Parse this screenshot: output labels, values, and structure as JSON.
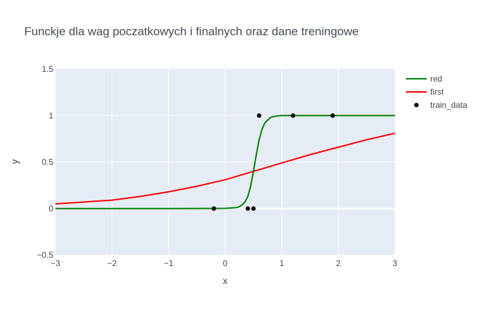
{
  "chart_data": {
    "type": "line",
    "title": "Funckje dla wag poczatkowych i finalnych oraz dane treningowe",
    "xlabel": "x",
    "ylabel": "y",
    "xlim": [
      -3,
      3
    ],
    "ylim": [
      -0.5,
      1.5
    ],
    "xticks": [
      -3,
      -2,
      -1,
      0,
      1,
      2,
      3
    ],
    "yticks": [
      -0.5,
      0,
      0.5,
      1,
      1.5
    ],
    "xtick_labels": [
      "−3",
      "−2",
      "−1",
      "0",
      "1",
      "2",
      "3"
    ],
    "ytick_labels": [
      "−0.5",
      "0",
      "0.5",
      "1",
      "1.5"
    ],
    "grid": true,
    "legend_position": "top-right",
    "background": "#e5ecf6",
    "series": [
      {
        "name": "red",
        "kind": "line",
        "color": "#008000",
        "x": [
          -3,
          -1,
          0,
          0.2,
          0.25,
          0.3,
          0.35,
          0.4,
          0.45,
          0.5,
          0.55,
          0.6,
          0.65,
          0.7,
          0.8,
          0.9,
          1.0,
          1.5,
          2,
          3
        ],
        "y": [
          0,
          0,
          0.002,
          0.01,
          0.02,
          0.04,
          0.07,
          0.13,
          0.24,
          0.4,
          0.58,
          0.74,
          0.85,
          0.92,
          0.98,
          0.995,
          1.0,
          1.0,
          1.0,
          1.0
        ]
      },
      {
        "name": "first",
        "kind": "line",
        "color": "#ff0000",
        "x": [
          -3,
          -2.5,
          -2,
          -1.5,
          -1,
          -0.5,
          0,
          0.5,
          1,
          1.5,
          2,
          2.5,
          3
        ],
        "y": [
          0.05,
          0.07,
          0.09,
          0.13,
          0.18,
          0.24,
          0.31,
          0.4,
          0.49,
          0.58,
          0.66,
          0.74,
          0.81
        ]
      },
      {
        "name": "train_data",
        "kind": "markers",
        "color": "#000000",
        "x": [
          -0.2,
          0.4,
          0.5,
          0.6,
          1.2,
          1.9
        ],
        "y": [
          0,
          0,
          0,
          1,
          1,
          1
        ]
      }
    ]
  }
}
